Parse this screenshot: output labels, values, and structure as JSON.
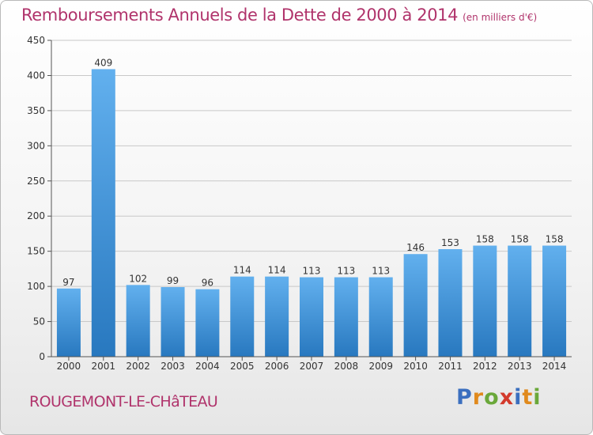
{
  "title": "Remboursements Annuels de la Dette de 2000 à 2014",
  "unit": "(en milliers d'€)",
  "place": "ROUGEMONT-LE-CHâTEAU",
  "logo": {
    "letters": [
      "P",
      "r",
      "o",
      "x",
      "i",
      "t",
      "i"
    ],
    "colors": [
      "#3b6fbf",
      "#e08a1e",
      "#6aa83a",
      "#d33a2c",
      "#3b6fbf",
      "#e08a1e",
      "#6aa83a"
    ]
  },
  "colors": {
    "title": "#b0336b",
    "bar_top": "#62b0ee",
    "bar_bottom": "#2878bf",
    "axis": "#555555",
    "grid": "#c8c8c8"
  },
  "chart_data": {
    "type": "bar",
    "title": "Remboursements Annuels de la Dette de 2000 à 2014",
    "xlabel": "",
    "ylabel": "",
    "categories": [
      "2000",
      "2001",
      "2002",
      "2003",
      "2004",
      "2005",
      "2006",
      "2007",
      "2008",
      "2009",
      "2010",
      "2011",
      "2012",
      "2013",
      "2014"
    ],
    "values": [
      97,
      409,
      102,
      99,
      96,
      114,
      114,
      113,
      113,
      113,
      146,
      153,
      158,
      158,
      158
    ],
    "ylim": [
      0,
      450
    ],
    "yticks": [
      0,
      50,
      100,
      150,
      200,
      250,
      300,
      350,
      400,
      450
    ],
    "grid": true,
    "data_labels": true
  }
}
